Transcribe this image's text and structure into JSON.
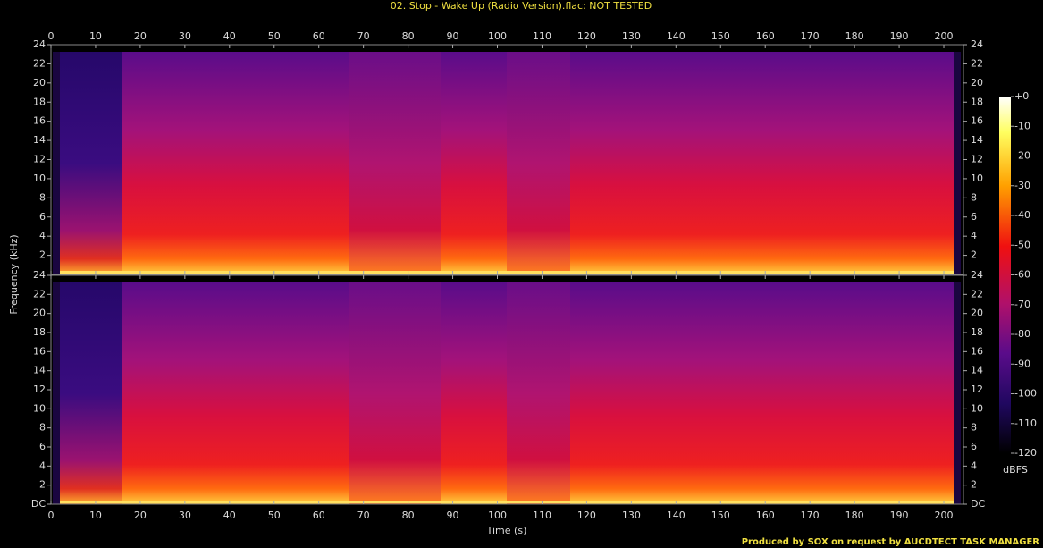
{
  "chart_data": [
    {
      "type": "spectrogram",
      "title": "02. Stop - Wake Up (Radio Version).flac: NOT TESTED",
      "ylabel": "Frequency (kHz)",
      "xlim": [
        0,
        204.4
      ],
      "xticks": [
        0,
        10,
        20,
        30,
        40,
        50,
        60,
        70,
        80,
        90,
        100,
        110,
        120,
        130,
        140,
        150,
        160,
        170,
        180,
        190,
        200
      ],
      "ylim": [
        0,
        24
      ],
      "yticks": [
        2,
        4,
        6,
        8,
        10,
        12,
        14,
        16,
        18,
        20,
        22,
        24
      ],
      "colorbar": {
        "label": "dBFS",
        "lim": [
          -120,
          0
        ],
        "ticks": [
          {
            "value": 0,
            "label": "+0"
          },
          -10,
          -20,
          -30,
          -40,
          -50,
          -60,
          -70,
          -80,
          -90,
          -100,
          -110,
          -120
        ]
      }
    },
    {
      "type": "spectrogram",
      "xlabel": "Time (s)",
      "xlim": [
        0,
        204.4
      ],
      "xticks": [
        0,
        10,
        20,
        30,
        40,
        50,
        60,
        70,
        80,
        90,
        100,
        110,
        120,
        130,
        140,
        150,
        160,
        170,
        180,
        190,
        200
      ],
      "ylim": [
        0,
        24
      ],
      "yticks": [
        {
          "value": 0,
          "label": "DC"
        },
        2,
        4,
        6,
        8,
        10,
        12,
        14,
        16,
        18,
        20,
        22,
        24
      ]
    }
  ],
  "footer": "Produced by SOX on request by AUCDTECT TASK MANAGER"
}
